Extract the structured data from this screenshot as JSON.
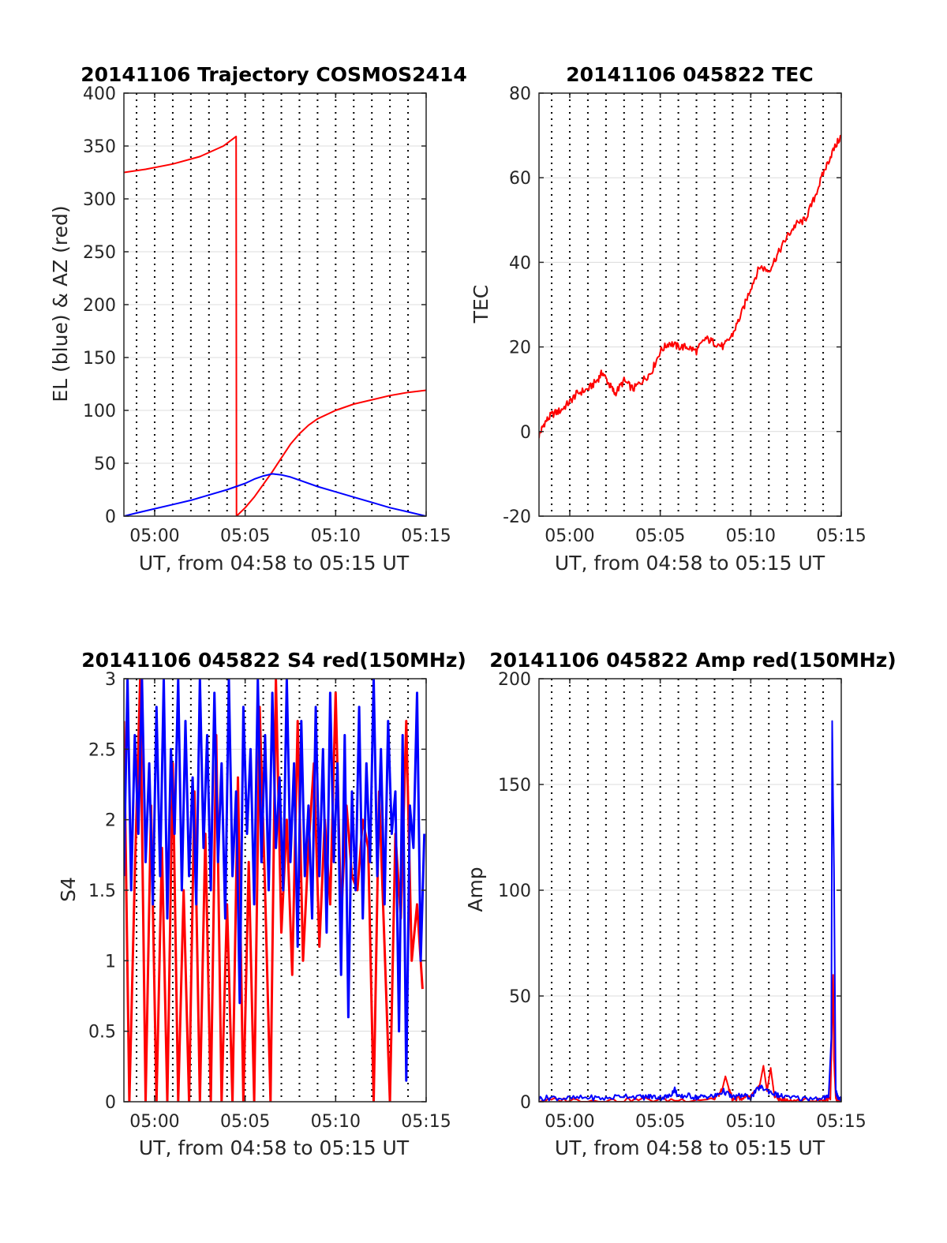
{
  "colors": {
    "blue": "#0000ff",
    "red": "#ff0000",
    "grid": "#dcdcdc",
    "axis": "#262626"
  },
  "chart_data": [
    {
      "id": "trajectory",
      "type": "line",
      "title": "20141106 Trajectory COSMOS2414",
      "xlabel": "UT, from 04:58 to 05:15 UT",
      "ylabel": "EL (blue) & AZ (red)",
      "x_unit": "minutes since 04:58",
      "xlim": [
        0.3,
        17
      ],
      "ylim": [
        0,
        400
      ],
      "yticks": [
        0,
        50,
        100,
        150,
        200,
        250,
        300,
        350,
        400
      ],
      "ytick_labels": [
        "0",
        "50",
        "100",
        "150",
        "200",
        "250",
        "300",
        "350",
        "400"
      ],
      "xticks": [
        2,
        7,
        12,
        17
      ],
      "xtick_labels": [
        "05:00",
        "05:05",
        "05:10",
        "05:15"
      ],
      "minor_dotted_x": [
        1,
        2,
        3,
        4,
        5,
        6,
        7,
        8,
        9,
        10,
        11,
        12,
        13,
        14,
        15,
        16
      ],
      "grid": true,
      "series": [
        {
          "color": "#ff0000",
          "x": [
            0.3,
            1.5,
            3.0,
            4.5,
            5.8,
            6.5,
            6.52,
            7.0,
            7.5,
            8.0,
            8.5,
            9.0,
            9.5,
            10.0,
            10.5,
            11.0,
            12.0,
            13.0,
            14.0,
            15.0,
            16.0,
            17.0
          ],
          "y": [
            325,
            328,
            333,
            340,
            350,
            359,
            0,
            8,
            18,
            30,
            42,
            55,
            68,
            78,
            86,
            92,
            100,
            106,
            110,
            114,
            117,
            119
          ]
        },
        {
          "color": "#0000ff",
          "x": [
            0.3,
            1.0,
            2.0,
            3.0,
            4.0,
            5.0,
            6.0,
            7.0,
            7.5,
            8.0,
            8.5,
            9.0,
            9.5,
            10.0,
            11.0,
            12.0,
            13.0,
            14.0,
            15.0,
            16.0,
            17.0
          ],
          "y": [
            0,
            3,
            7,
            11,
            15,
            20,
            25,
            31,
            35,
            38,
            40,
            39,
            37,
            34,
            28,
            23,
            18,
            13,
            8,
            4,
            0
          ]
        }
      ]
    },
    {
      "id": "tec",
      "type": "line",
      "title": "20141106 045822 TEC",
      "xlabel": "UT, from 04:58 to 05:15 UT",
      "ylabel": "TEC",
      "x_unit": "minutes since 04:58",
      "xlim": [
        0.3,
        17
      ],
      "ylim": [
        -20,
        80
      ],
      "yticks": [
        -20,
        0,
        20,
        40,
        60,
        80
      ],
      "ytick_labels": [
        "-20",
        "0",
        "20",
        "40",
        "60",
        "80"
      ],
      "xticks": [
        2,
        7,
        12,
        17
      ],
      "xtick_labels": [
        "05:00",
        "05:05",
        "05:10",
        "05:15"
      ],
      "minor_dotted_x": [
        1,
        2,
        3,
        4,
        5,
        6,
        7,
        8,
        9,
        10,
        11,
        12,
        13,
        14,
        15,
        16
      ],
      "grid": true,
      "series": [
        {
          "color": "#ff0000",
          "x": [
            0.3,
            0.6,
            1.0,
            1.5,
            2.0,
            2.4,
            3.0,
            3.5,
            3.8,
            4.2,
            4.5,
            5.0,
            5.5,
            6.0,
            6.5,
            7.0,
            7.5,
            8.0,
            8.5,
            9.0,
            9.5,
            10.0,
            10.5,
            11.0,
            11.5,
            12.0,
            12.5,
            13.0,
            13.5,
            14.0,
            14.5,
            15.0,
            15.5,
            16.0,
            16.5,
            17.0
          ],
          "y": [
            -1,
            2,
            4,
            5,
            7,
            9,
            10,
            12,
            14,
            11,
            9,
            12,
            10,
            12,
            14,
            19,
            21,
            20,
            20,
            19,
            22,
            21,
            20,
            23,
            28,
            34,
            39,
            38,
            42,
            46,
            49,
            50,
            55,
            61,
            66,
            70
          ]
        }
      ]
    },
    {
      "id": "s4",
      "type": "line",
      "title": "20141106 045822 S4 red(150MHz)",
      "xlabel": "UT, from 04:58 to 05:15 UT",
      "ylabel": "S4",
      "x_unit": "minutes since 04:58",
      "xlim": [
        0.3,
        17
      ],
      "ylim": [
        0,
        3
      ],
      "yticks": [
        0,
        0.5,
        1,
        1.5,
        2,
        2.5,
        3
      ],
      "ytick_labels": [
        "0",
        "0.5",
        "1",
        "1.5",
        "2",
        "2.5",
        "3"
      ],
      "xticks": [
        2,
        7,
        12,
        17
      ],
      "xtick_labels": [
        "05:00",
        "05:05",
        "05:10",
        "05:15"
      ],
      "minor_dotted_x": [
        1,
        2,
        3,
        4,
        5,
        6,
        7,
        8,
        9,
        10,
        11,
        12,
        13,
        14,
        15,
        16
      ],
      "grid": true,
      "series": [
        {
          "color": "#ff0000",
          "x": [
            0.3,
            0.6,
            0.9,
            1.2,
            1.5,
            1.8,
            2.1,
            2.4,
            2.7,
            3.0,
            3.3,
            3.6,
            3.9,
            4.2,
            4.5,
            4.8,
            5.1,
            5.4,
            5.7,
            6.0,
            6.3,
            6.6,
            6.9,
            7.2,
            7.5,
            7.8,
            8.1,
            8.4,
            8.7,
            9.0,
            9.3,
            9.6,
            9.9,
            10.2,
            10.5,
            10.8,
            11.1,
            11.4,
            11.7,
            12.0,
            12.3,
            12.6,
            12.9,
            13.2,
            13.5,
            13.8,
            14.1,
            14.4,
            14.7,
            15.0,
            15.3,
            15.6,
            15.9,
            16.2,
            16.5,
            16.8
          ],
          "y": [
            2.7,
            0.0,
            1.6,
            3.0,
            0.0,
            2.1,
            0.0,
            1.8,
            0.0,
            2.4,
            0.0,
            1.5,
            0.0,
            2.2,
            0.0,
            1.9,
            0.0,
            2.6,
            0.0,
            1.4,
            0.0,
            2.3,
            0.0,
            1.7,
            0.0,
            2.8,
            1.5,
            0.0,
            3.0,
            1.2,
            2.0,
            0.9,
            2.7,
            1.0,
            1.8,
            2.4,
            1.1,
            2.0,
            1.4,
            2.9,
            1.3,
            2.1,
            1.6,
            1.5,
            2.0,
            1.8,
            0.0,
            2.2,
            1.1,
            0.0,
            1.9,
            1.3,
            2.7,
            1.0,
            1.4,
            0.8
          ]
        },
        {
          "color": "#0000ff",
          "x": [
            0.3,
            0.5,
            0.7,
            0.9,
            1.1,
            1.3,
            1.5,
            1.7,
            1.9,
            2.1,
            2.3,
            2.5,
            2.7,
            2.9,
            3.1,
            3.3,
            3.5,
            3.7,
            3.9,
            4.1,
            4.3,
            4.5,
            4.7,
            4.9,
            5.1,
            5.3,
            5.5,
            5.7,
            5.9,
            6.1,
            6.3,
            6.5,
            6.7,
            6.9,
            7.1,
            7.3,
            7.5,
            7.7,
            7.9,
            8.1,
            8.3,
            8.5,
            8.7,
            8.9,
            9.1,
            9.3,
            9.5,
            9.7,
            9.9,
            10.1,
            10.3,
            10.5,
            10.7,
            10.9,
            11.1,
            11.3,
            11.5,
            11.7,
            11.9,
            12.1,
            12.3,
            12.5,
            12.7,
            12.9,
            13.1,
            13.3,
            13.5,
            13.7,
            13.9,
            14.1,
            14.3,
            14.5,
            14.7,
            14.9,
            15.1,
            15.3,
            15.5,
            15.7,
            15.9,
            16.1,
            16.3,
            16.5,
            16.7,
            16.9
          ],
          "y": [
            1.6,
            3.0,
            1.5,
            2.6,
            1.9,
            3.0,
            1.7,
            2.4,
            1.4,
            2.8,
            1.6,
            3.0,
            1.3,
            2.5,
            1.9,
            3.0,
            1.5,
            2.7,
            1.6,
            2.3,
            1.4,
            3.0,
            1.8,
            2.6,
            1.5,
            2.9,
            1.7,
            2.4,
            1.3,
            3.0,
            1.6,
            2.2,
            0.7,
            2.8,
            1.9,
            2.5,
            1.4,
            3.0,
            1.7,
            2.6,
            1.5,
            2.9,
            1.8,
            2.3,
            1.5,
            3.0,
            1.7,
            2.4,
            1.1,
            2.7,
            1.6,
            2.1,
            1.3,
            2.8,
            1.6,
            2.5,
            1.2,
            2.9,
            1.7,
            2.4,
            0.9,
            2.6,
            0.6,
            2.2,
            1.5,
            2.8,
            1.3,
            2.4,
            1.7,
            3.0,
            1.6,
            2.5,
            1.4,
            2.7,
            1.9,
            2.2,
            0.5,
            2.6,
            0.15,
            2.1,
            1.8,
            2.9,
            1.0,
            1.9
          ]
        }
      ]
    },
    {
      "id": "amp",
      "type": "line",
      "title": "20141106 045822 Amp red(150MHz)",
      "xlabel": "UT, from 04:58 to 05:15 UT",
      "ylabel": "Amp",
      "x_unit": "minutes since 04:58",
      "xlim": [
        0.3,
        17
      ],
      "ylim": [
        0,
        200
      ],
      "yticks": [
        0,
        50,
        100,
        150,
        200
      ],
      "ytick_labels": [
        "0",
        "50",
        "100",
        "150",
        "200"
      ],
      "xticks": [
        2,
        7,
        12,
        17
      ],
      "xtick_labels": [
        "05:00",
        "05:05",
        "05:10",
        "05:15"
      ],
      "minor_dotted_x": [
        1,
        2,
        3,
        4,
        5,
        6,
        7,
        8,
        9,
        10,
        11,
        12,
        13,
        14,
        15,
        16
      ],
      "grid": true,
      "series": [
        {
          "color": "#ff0000",
          "x": [
            0.3,
            2.0,
            4.0,
            6.0,
            8.0,
            10.0,
            10.4,
            10.6,
            10.8,
            11.0,
            11.5,
            12.0,
            12.5,
            12.7,
            12.9,
            13.1,
            13.3,
            13.6,
            14.0,
            15.0,
            16.0,
            16.4,
            16.5,
            16.55,
            16.6,
            16.7,
            17.0
          ],
          "y": [
            0.5,
            0.8,
            0.5,
            1.0,
            0.8,
            1.5,
            5,
            12,
            6,
            1,
            2,
            3,
            8,
            17,
            5,
            16,
            3,
            1,
            0.5,
            0.5,
            0.6,
            1,
            40,
            60,
            20,
            1,
            0.5
          ]
        },
        {
          "color": "#0000ff",
          "x": [
            0.3,
            1.0,
            2.0,
            3.0,
            4.0,
            5.0,
            6.0,
            6.5,
            7.0,
            7.5,
            7.8,
            8.0,
            8.5,
            9.0,
            9.5,
            10.0,
            10.5,
            11.0,
            11.5,
            12.0,
            12.5,
            13.0,
            13.5,
            14.0,
            15.0,
            16.0,
            16.3,
            16.45,
            16.5,
            16.55,
            16.6,
            16.65,
            16.7,
            16.8,
            17.0
          ],
          "y": [
            1.5,
            2,
            1.5,
            2,
            1.5,
            3,
            2,
            2.5,
            2,
            2.5,
            6,
            2,
            3,
            2,
            2.5,
            2.5,
            5,
            2,
            3,
            2,
            7,
            5,
            3,
            2,
            1.5,
            2,
            2,
            30,
            180,
            140,
            110,
            50,
            5,
            2,
            1.5
          ]
        }
      ]
    }
  ]
}
